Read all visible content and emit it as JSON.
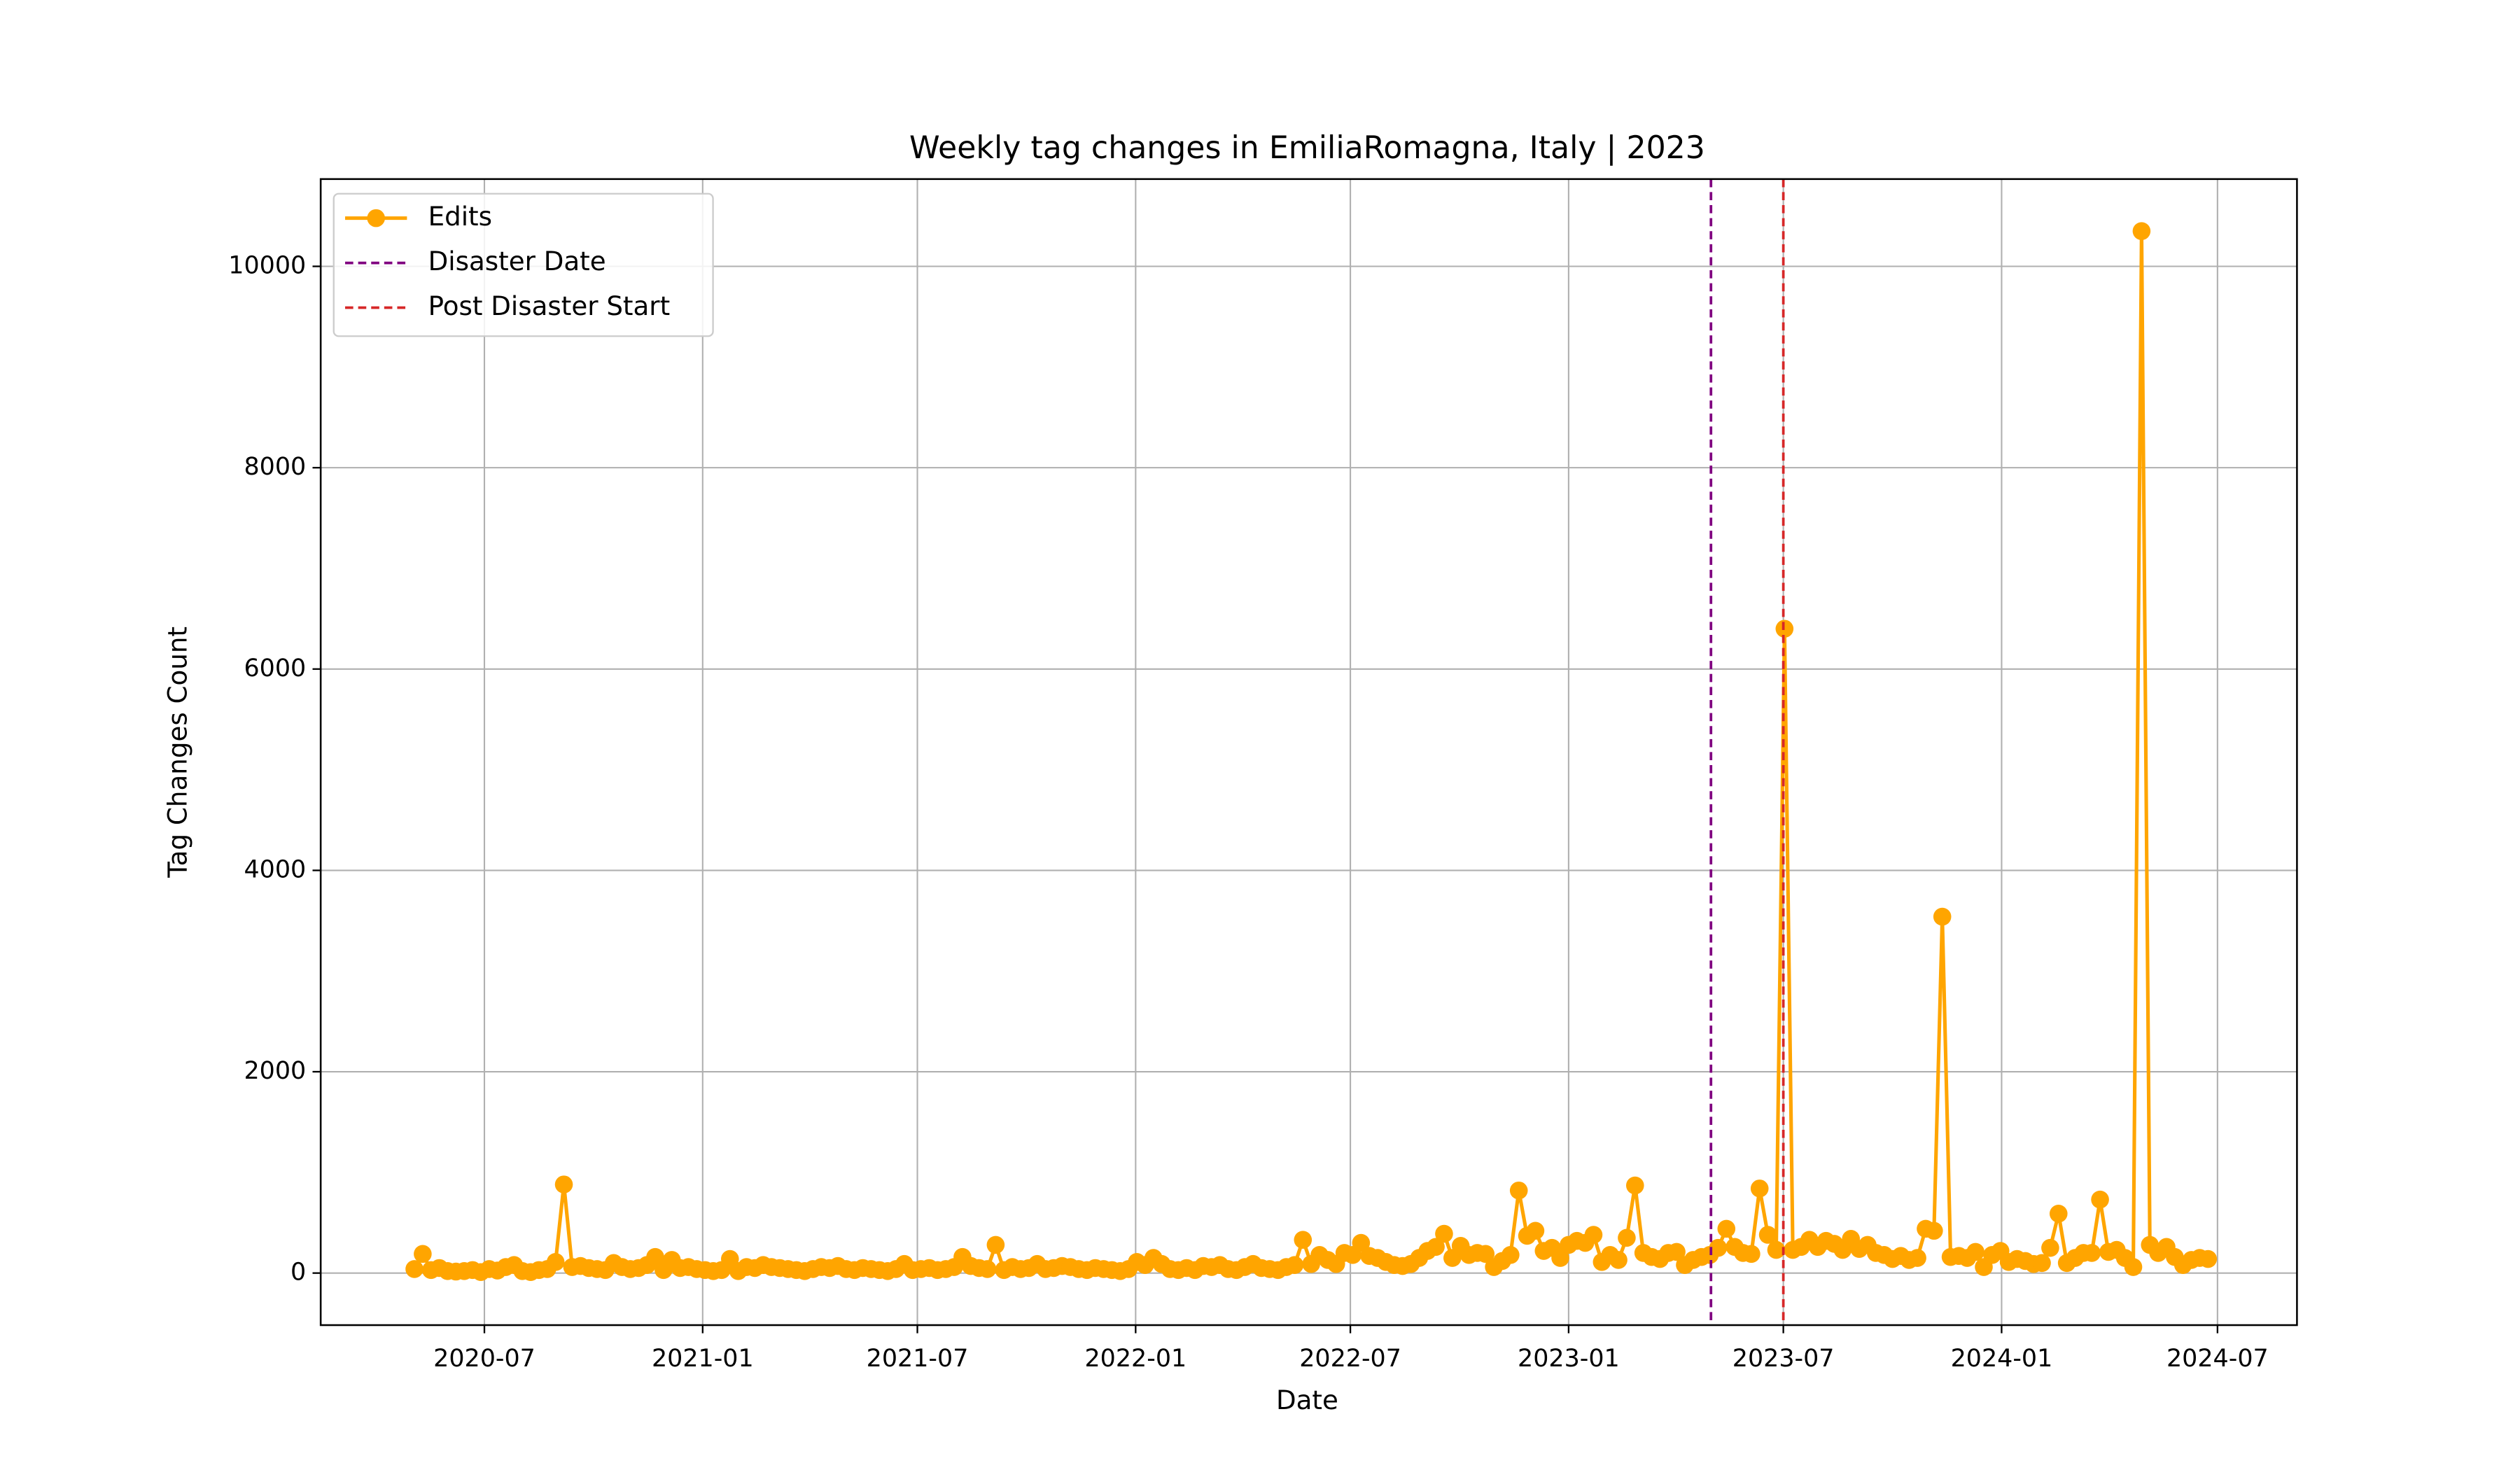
{
  "chart_data": {
    "type": "line",
    "title": "Weekly tag changes in EmiliaRomagna, Italy | 2023",
    "xlabel": "Date",
    "ylabel": "Tag Changes Count",
    "grid": true,
    "legend": "upper left",
    "xlim": [
      "2020-02-14",
      "2024-09-06"
    ],
    "xticks": [
      {
        "value": "2020-07-01",
        "label": "2020-07"
      },
      {
        "value": "2021-01-01",
        "label": "2021-01"
      },
      {
        "value": "2021-07-01",
        "label": "2021-07"
      },
      {
        "value": "2022-01-01",
        "label": "2022-01"
      },
      {
        "value": "2022-07-01",
        "label": "2022-07"
      },
      {
        "value": "2023-01-01",
        "label": "2023-01"
      },
      {
        "value": "2023-07-01",
        "label": "2023-07"
      },
      {
        "value": "2024-01-01",
        "label": "2024-01"
      },
      {
        "value": "2024-07-01",
        "label": "2024-07"
      }
    ],
    "ylim": [
      -517,
      10867
    ],
    "yticks": [
      0,
      2000,
      4000,
      6000,
      8000,
      10000
    ],
    "x": [
      "2020-05-03",
      "2020-05-10",
      "2020-05-17",
      "2020-05-24",
      "2020-05-31",
      "2020-06-07",
      "2020-06-14",
      "2020-06-21",
      "2020-06-28",
      "2020-07-05",
      "2020-07-12",
      "2020-07-19",
      "2020-07-26",
      "2020-08-02",
      "2020-08-09",
      "2020-08-16",
      "2020-08-23",
      "2020-08-30",
      "2020-09-06",
      "2020-09-13",
      "2020-09-20",
      "2020-09-27",
      "2020-10-04",
      "2020-10-11",
      "2020-10-18",
      "2020-10-25",
      "2020-11-01",
      "2020-11-08",
      "2020-11-15",
      "2020-11-22",
      "2020-11-29",
      "2020-12-06",
      "2020-12-13",
      "2020-12-20",
      "2020-12-27",
      "2021-01-03",
      "2021-01-10",
      "2021-01-17",
      "2021-01-24",
      "2021-01-31",
      "2021-02-07",
      "2021-02-14",
      "2021-02-21",
      "2021-02-28",
      "2021-03-07",
      "2021-03-14",
      "2021-03-21",
      "2021-03-28",
      "2021-04-04",
      "2021-04-11",
      "2021-04-18",
      "2021-04-25",
      "2021-05-02",
      "2021-05-09",
      "2021-05-16",
      "2021-05-23",
      "2021-05-30",
      "2021-06-06",
      "2021-06-13",
      "2021-06-20",
      "2021-06-27",
      "2021-07-04",
      "2021-07-11",
      "2021-07-18",
      "2021-07-25",
      "2021-08-01",
      "2021-08-08",
      "2021-08-15",
      "2021-08-22",
      "2021-08-29",
      "2021-09-05",
      "2021-09-12",
      "2021-09-19",
      "2021-09-26",
      "2021-10-03",
      "2021-10-10",
      "2021-10-17",
      "2021-10-24",
      "2021-10-31",
      "2021-11-07",
      "2021-11-14",
      "2021-11-21",
      "2021-11-28",
      "2021-12-05",
      "2021-12-12",
      "2021-12-19",
      "2021-12-26",
      "2022-01-02",
      "2022-01-09",
      "2022-01-16",
      "2022-01-23",
      "2022-01-30",
      "2022-02-06",
      "2022-02-13",
      "2022-02-20",
      "2022-02-27",
      "2022-03-06",
      "2022-03-13",
      "2022-03-20",
      "2022-03-27",
      "2022-04-03",
      "2022-04-10",
      "2022-04-17",
      "2022-04-24",
      "2022-05-01",
      "2022-05-08",
      "2022-05-15",
      "2022-05-22",
      "2022-05-29",
      "2022-06-05",
      "2022-06-12",
      "2022-06-19",
      "2022-06-26",
      "2022-07-03",
      "2022-07-10",
      "2022-07-17",
      "2022-07-24",
      "2022-07-31",
      "2022-08-07",
      "2022-08-14",
      "2022-08-21",
      "2022-08-28",
      "2022-09-04",
      "2022-09-11",
      "2022-09-18",
      "2022-09-25",
      "2022-10-02",
      "2022-10-09",
      "2022-10-16",
      "2022-10-23",
      "2022-10-30",
      "2022-11-06",
      "2022-11-13",
      "2022-11-20",
      "2022-11-27",
      "2022-12-04",
      "2022-12-11",
      "2022-12-18",
      "2022-12-25",
      "2023-01-01",
      "2023-01-08",
      "2023-01-15",
      "2023-01-22",
      "2023-01-29",
      "2023-02-05",
      "2023-02-12",
      "2023-02-19",
      "2023-02-26",
      "2023-03-05",
      "2023-03-12",
      "2023-03-19",
      "2023-03-26",
      "2023-04-02",
      "2023-04-09",
      "2023-04-16",
      "2023-04-23",
      "2023-04-30",
      "2023-05-07",
      "2023-05-14",
      "2023-05-21",
      "2023-05-28",
      "2023-06-04",
      "2023-06-11",
      "2023-06-18",
      "2023-06-25",
      "2023-07-02",
      "2023-07-09",
      "2023-07-16",
      "2023-07-23",
      "2023-07-30",
      "2023-08-06",
      "2023-08-13",
      "2023-08-20",
      "2023-08-27",
      "2023-09-03",
      "2023-09-10",
      "2023-09-17",
      "2023-09-24",
      "2023-10-01",
      "2023-10-08",
      "2023-10-15",
      "2023-10-22",
      "2023-10-29",
      "2023-11-05",
      "2023-11-12",
      "2023-11-19",
      "2023-11-26",
      "2023-12-03",
      "2023-12-10",
      "2023-12-17",
      "2023-12-24",
      "2023-12-31",
      "2024-01-07",
      "2024-01-14",
      "2024-01-21",
      "2024-01-28",
      "2024-02-04",
      "2024-02-11",
      "2024-02-18",
      "2024-02-25",
      "2024-03-03",
      "2024-03-10",
      "2024-03-17",
      "2024-03-24",
      "2024-03-31",
      "2024-04-07",
      "2024-04-14",
      "2024-04-21",
      "2024-04-28",
      "2024-05-05",
      "2024-05-12",
      "2024-05-19",
      "2024-05-26",
      "2024-06-02",
      "2024-06-09",
      "2024-06-16",
      "2024-06-23"
    ],
    "series": [
      {
        "name": "Edits",
        "color": "orange",
        "values": [
          40,
          190,
          30,
          50,
          20,
          15,
          20,
          30,
          10,
          40,
          25,
          60,
          80,
          20,
          10,
          30,
          40,
          110,
          880,
          60,
          70,
          50,
          40,
          30,
          100,
          60,
          40,
          50,
          80,
          160,
          30,
          130,
          50,
          60,
          40,
          30,
          20,
          30,
          140,
          20,
          60,
          50,
          80,
          60,
          50,
          40,
          30,
          20,
          40,
          60,
          50,
          70,
          40,
          30,
          50,
          40,
          30,
          20,
          40,
          90,
          30,
          40,
          50,
          30,
          40,
          60,
          160,
          70,
          50,
          40,
          280,
          30,
          60,
          40,
          50,
          90,
          40,
          50,
          70,
          60,
          40,
          30,
          50,
          40,
          30,
          20,
          40,
          110,
          80,
          150,
          90,
          40,
          30,
          50,
          30,
          70,
          60,
          80,
          40,
          30,
          60,
          90,
          50,
          40,
          30,
          60,
          80,
          330,
          90,
          180,
          130,
          90,
          200,
          180,
          300,
          170,
          150,
          110,
          80,
          70,
          90,
          150,
          220,
          260,
          390,
          150,
          270,
          180,
          200,
          190,
          60,
          120,
          180,
          820,
          370,
          420,
          220,
          250,
          150,
          280,
          320,
          300,
          380,
          110,
          180,
          130,
          350,
          870,
          200,
          160,
          140,
          200,
          210,
          80,
          130,
          160,
          180,
          250,
          440,
          260,
          200,
          190,
          840,
          380,
          230,
          6400,
          230,
          260,
          330,
          260,
          320,
          290,
          230,
          340,
          240,
          280,
          200,
          180,
          140,
          170,
          130,
          150,
          440,
          420,
          3540,
          160,
          170,
          150,
          210,
          60,
          180,
          220,
          110,
          140,
          120,
          90,
          100,
          250,
          590,
          100,
          150,
          200,
          200,
          730,
          210,
          230,
          150,
          60,
          10350,
          280,
          200,
          260,
          160,
          80,
          130,
          150,
          140
        ]
      }
    ],
    "vlines": [
      {
        "name": "Disaster Date",
        "x": "2023-05-01",
        "color": "purple"
      },
      {
        "name": "Post Disaster Start",
        "x": "2023-07-01",
        "color": "#d62728"
      }
    ]
  }
}
